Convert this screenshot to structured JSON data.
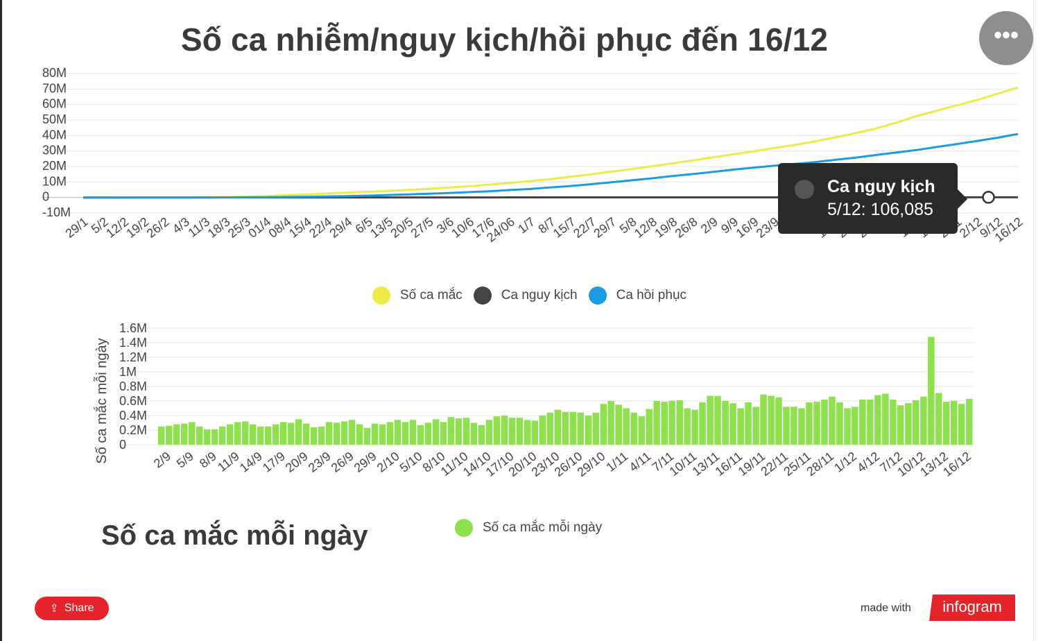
{
  "title": "Số ca nhiễm/nguy kịch/hồi phục đến 16/12",
  "more_icon": "more-horizontal-icon",
  "tooltip": {
    "series": "Ca nguy kịch",
    "text": "5/12: 106,085"
  },
  "subtitle": "Số ca mắc mỗi ngày",
  "share": {
    "label": "Share",
    "icon": "share-icon"
  },
  "footer": {
    "made_with": "made with",
    "brand": "infogram"
  },
  "chart_data": [
    {
      "type": "line",
      "x": [
        "29/1",
        "5/2",
        "12/2",
        "19/2",
        "26/2",
        "4/3",
        "11/3",
        "18/3",
        "25/3",
        "01/4",
        "08/4",
        "15/4",
        "22/4",
        "29/4",
        "6/5",
        "13/5",
        "20/5",
        "27/5",
        "3/6",
        "10/6",
        "17/6",
        "24/06",
        "1/7",
        "8/7",
        "15/7",
        "22/7",
        "29/7",
        "5/8",
        "12/8",
        "19/8",
        "26/8",
        "2/9",
        "9/9",
        "16/9",
        "23/9",
        "30/9",
        "7/10",
        "14/10",
        "21/10",
        "28/10",
        "4/11",
        "11/11",
        "18/11",
        "25/11",
        "2/12",
        "9/12",
        "16/12"
      ],
      "x_labels_visible": [
        "29/1",
        "5/2",
        "12/2",
        "19/2",
        "26/2",
        "4/3",
        "11/3",
        "18/3",
        "25/3",
        "01/4",
        "08/4",
        "15/4",
        "22/4",
        "29/4",
        "6/5",
        "13/5",
        "20/5",
        "27/5",
        "3/6",
        "10/6",
        "17/6",
        "24/06",
        "1/7",
        "8/7",
        "15/7",
        "22/7",
        "29/7",
        "5/8",
        "12/8",
        "19/8",
        "26/8",
        "2/9",
        "9/9",
        "16/9",
        "23/9",
        "30/",
        "7/1",
        "14/1",
        "21/1",
        "28/1",
        "4/1",
        "11/1",
        "18/1",
        "25/1",
        "2/12",
        "9/12",
        "16/12"
      ],
      "y_ticks": [
        "80M",
        "70M",
        "60M",
        "50M",
        "40M",
        "30M",
        "20M",
        "10M",
        "0",
        "-10M"
      ],
      "ylim": [
        -10,
        80
      ],
      "y_unit": "M",
      "series": [
        {
          "name": "Số ca mắc",
          "color": "#eeea48",
          "values": [
            0.01,
            0.03,
            0.05,
            0.08,
            0.08,
            0.09,
            0.12,
            0.2,
            0.4,
            0.9,
            1.5,
            2.0,
            2.6,
            3.2,
            3.6,
            4.3,
            4.9,
            5.6,
            6.4,
            7.3,
            8.3,
            9.4,
            10.6,
            11.9,
            13.4,
            15.0,
            16.7,
            18.4,
            20.2,
            22.0,
            23.9,
            25.9,
            27.9,
            29.8,
            31.9,
            33.9,
            36.2,
            38.8,
            41.5,
            44.5,
            48.2,
            52.5,
            56.0,
            59.5,
            63.0,
            67.0,
            71.0
          ]
        },
        {
          "name": "Ca nguy kịch",
          "color": "#444444",
          "values": [
            0,
            0,
            0,
            0,
            0,
            0,
            0,
            0.01,
            0.02,
            0.03,
            0.04,
            0.05,
            0.05,
            0.05,
            0.05,
            0.05,
            0.05,
            0.05,
            0.05,
            0.05,
            0.05,
            0.06,
            0.06,
            0.06,
            0.06,
            0.06,
            0.06,
            0.06,
            0.06,
            0.06,
            0.06,
            0.06,
            0.06,
            0.06,
            0.06,
            0.07,
            0.07,
            0.07,
            0.07,
            0.08,
            0.08,
            0.09,
            0.1,
            0.1,
            0.106,
            0.106,
            0.106
          ]
        },
        {
          "name": "Ca hồi phục",
          "color": "#1a9ce0",
          "values": [
            0,
            0,
            0.01,
            0.02,
            0.03,
            0.04,
            0.06,
            0.08,
            0.1,
            0.2,
            0.3,
            0.5,
            0.7,
            0.9,
            1.2,
            1.6,
            2.0,
            2.4,
            2.9,
            3.5,
            4.0,
            4.8,
            5.5,
            6.5,
            7.4,
            8.6,
            9.8,
            11.1,
            12.4,
            13.8,
            15.1,
            16.5,
            18.0,
            19.3,
            20.5,
            21.6,
            22.8,
            24.3,
            25.7,
            27.4,
            29.0,
            30.6,
            32.6,
            34.5,
            36.5,
            38.6,
            41.0
          ]
        }
      ],
      "tooltip_point": {
        "series": "Ca nguy kịch",
        "x": "5/12",
        "value": 106085
      },
      "legend_position": "bottom"
    },
    {
      "type": "bar",
      "series_name": "Số ca mắc mỗi ngày",
      "color": "#8ee04f",
      "ylabel": "Số ca mắc mỗi ngày",
      "y_ticks": [
        "1.6M",
        "1.4M",
        "1.2M",
        "1M",
        "0.8M",
        "0.6M",
        "0.4M",
        "0.2M",
        "0"
      ],
      "ylim": [
        0,
        1.6
      ],
      "y_unit": "M",
      "x_labels": [
        "2/9",
        "5/9",
        "8/9",
        "11/9",
        "14/9",
        "17/9",
        "20/9",
        "23/9",
        "26/9",
        "29/9",
        "2/10",
        "5/10",
        "8/10",
        "11/10",
        "14/10",
        "17/10",
        "20/10",
        "23/10",
        "26/10",
        "29/10",
        "1/11",
        "4/11",
        "7/11",
        "10/11",
        "13/11",
        "16/11",
        "19/11",
        "22/11",
        "25/11",
        "28/11",
        "1/12",
        "4/12",
        "7/12",
        "10/12",
        "13/12",
        "16/12"
      ],
      "values": [
        0.25,
        0.26,
        0.28,
        0.29,
        0.31,
        0.25,
        0.21,
        0.21,
        0.25,
        0.28,
        0.31,
        0.32,
        0.28,
        0.25,
        0.25,
        0.28,
        0.31,
        0.3,
        0.35,
        0.29,
        0.24,
        0.25,
        0.31,
        0.3,
        0.32,
        0.34,
        0.28,
        0.23,
        0.29,
        0.28,
        0.31,
        0.34,
        0.31,
        0.34,
        0.27,
        0.3,
        0.35,
        0.31,
        0.38,
        0.36,
        0.37,
        0.3,
        0.27,
        0.34,
        0.39,
        0.4,
        0.37,
        0.37,
        0.34,
        0.33,
        0.4,
        0.44,
        0.48,
        0.45,
        0.45,
        0.44,
        0.4,
        0.44,
        0.56,
        0.6,
        0.55,
        0.5,
        0.44,
        0.39,
        0.49,
        0.6,
        0.59,
        0.6,
        0.61,
        0.5,
        0.48,
        0.58,
        0.67,
        0.67,
        0.6,
        0.57,
        0.5,
        0.58,
        0.52,
        0.69,
        0.67,
        0.65,
        0.52,
        0.52,
        0.5,
        0.58,
        0.59,
        0.62,
        0.66,
        0.58,
        0.5,
        0.52,
        0.62,
        0.62,
        0.68,
        0.7,
        0.62,
        0.54,
        0.57,
        0.61,
        0.66,
        1.48,
        0.71,
        0.59,
        0.6,
        0.56,
        0.63
      ],
      "legend_position": "bottom"
    }
  ]
}
